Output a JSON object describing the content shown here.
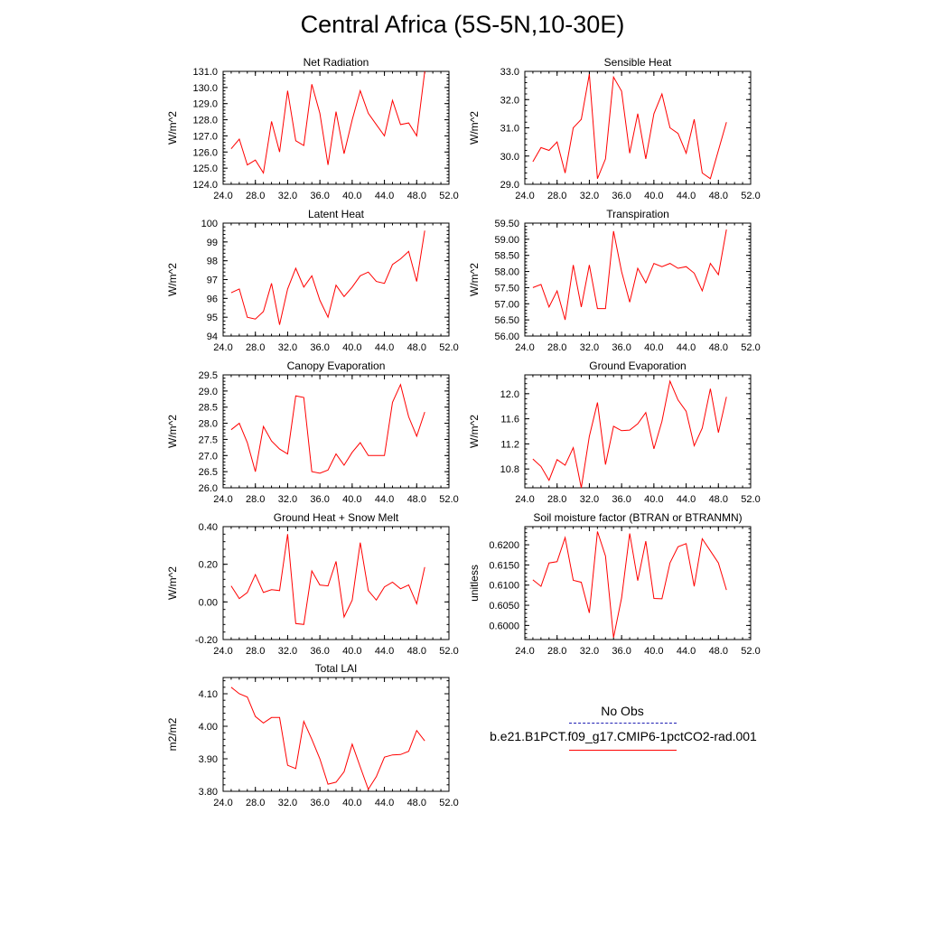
{
  "title": "Central Africa (5S-5N,10-30E)",
  "legend": {
    "obs_label": "No Obs",
    "obs_color": "#1f1fb4",
    "model_label": "b.e21.B1PCT.f09_g17.CMIP6-1pctCO2-rad.001",
    "model_color": "#ff0000"
  },
  "chart_data": [
    {
      "type": "line",
      "title": "Net Radiation",
      "xlabel": "",
      "ylabel": "W/m^2",
      "xlim": [
        24,
        52
      ],
      "ylim": [
        124,
        131
      ],
      "grid": false,
      "xticks": [
        "24.0",
        "28.0",
        "32.0",
        "36.0",
        "40.0",
        "44.0",
        "48.0",
        "52.0"
      ],
      "yticks": [
        "124.0",
        "125.0",
        "126.0",
        "127.0",
        "128.0",
        "129.0",
        "130.0",
        "131.0"
      ],
      "x": [
        25,
        26,
        27,
        28,
        29,
        30,
        31,
        32,
        33,
        34,
        35,
        36,
        37,
        38,
        39,
        40,
        41,
        42,
        43,
        44,
        45,
        46,
        47,
        48,
        49
      ],
      "series": [
        {
          "values": [
            126.2,
            126.8,
            125.2,
            125.5,
            124.7,
            127.9,
            126.0,
            129.8,
            126.7,
            126.4,
            130.2,
            128.4,
            125.2,
            128.5,
            125.9,
            128.0,
            129.8,
            128.4,
            127.7,
            127.0,
            129.2,
            127.7,
            127.8,
            127.0,
            131.0
          ]
        }
      ]
    },
    {
      "type": "line",
      "title": "Sensible Heat",
      "xlabel": "",
      "ylabel": "W/m^2",
      "xlim": [
        24,
        52
      ],
      "ylim": [
        29,
        33
      ],
      "grid": false,
      "xticks": [
        "24.0",
        "28.0",
        "32.0",
        "36.0",
        "40.0",
        "44.0",
        "48.0",
        "52.0"
      ],
      "yticks": [
        "29.0",
        "30.0",
        "31.0",
        "32.0",
        "33.0"
      ],
      "x": [
        25,
        26,
        27,
        28,
        29,
        30,
        31,
        32,
        33,
        34,
        35,
        36,
        37,
        38,
        39,
        40,
        41,
        42,
        43,
        44,
        45,
        46,
        47,
        48,
        49
      ],
      "series": [
        {
          "values": [
            29.8,
            30.3,
            30.2,
            30.5,
            29.4,
            31.0,
            31.3,
            32.9,
            29.2,
            29.9,
            32.8,
            32.3,
            30.1,
            31.5,
            29.9,
            31.5,
            32.2,
            31.0,
            30.8,
            30.1,
            31.3,
            29.4,
            29.2,
            30.2,
            31.2
          ]
        }
      ]
    },
    {
      "type": "line",
      "title": "Latent Heat",
      "xlabel": "",
      "ylabel": "W/m^2",
      "xlim": [
        24,
        52
      ],
      "ylim": [
        94,
        100
      ],
      "grid": false,
      "xticks": [
        "24.0",
        "28.0",
        "32.0",
        "36.0",
        "40.0",
        "44.0",
        "48.0",
        "52.0"
      ],
      "yticks": [
        "94",
        "95",
        "96",
        "97",
        "98",
        "99",
        "100"
      ],
      "x": [
        25,
        26,
        27,
        28,
        29,
        30,
        31,
        32,
        33,
        34,
        35,
        36,
        37,
        38,
        39,
        40,
        41,
        42,
        43,
        44,
        45,
        46,
        47,
        48,
        49
      ],
      "series": [
        {
          "values": [
            96.3,
            96.5,
            95.0,
            94.9,
            95.3,
            96.8,
            94.6,
            96.5,
            97.6,
            96.6,
            97.2,
            95.9,
            95.0,
            96.7,
            96.1,
            96.6,
            97.2,
            97.4,
            96.9,
            96.8,
            97.8,
            98.1,
            98.5,
            96.9,
            99.6
          ]
        }
      ]
    },
    {
      "type": "line",
      "title": "Transpiration",
      "xlabel": "",
      "ylabel": "W/m^2",
      "xlim": [
        24,
        52
      ],
      "ylim": [
        56,
        59.5
      ],
      "grid": false,
      "xticks": [
        "24.0",
        "28.0",
        "32.0",
        "36.0",
        "40.0",
        "44.0",
        "48.0",
        "52.0"
      ],
      "yticks": [
        "56.00",
        "56.50",
        "57.00",
        "57.50",
        "58.00",
        "58.50",
        "59.00",
        "59.50"
      ],
      "x": [
        25,
        26,
        27,
        28,
        29,
        30,
        31,
        32,
        33,
        34,
        35,
        36,
        37,
        38,
        39,
        40,
        41,
        42,
        43,
        44,
        45,
        46,
        47,
        48,
        49
      ],
      "series": [
        {
          "values": [
            57.5,
            57.6,
            56.9,
            57.4,
            56.5,
            58.2,
            56.9,
            58.2,
            56.85,
            56.85,
            59.25,
            58.0,
            57.05,
            58.1,
            57.65,
            58.25,
            58.15,
            58.25,
            58.1,
            58.15,
            57.95,
            57.4,
            58.25,
            57.9,
            59.3
          ]
        }
      ]
    },
    {
      "type": "line",
      "title": "Canopy Evaporation",
      "xlabel": "",
      "ylabel": "W/m^2",
      "xlim": [
        24,
        52
      ],
      "ylim": [
        26,
        29.5
      ],
      "grid": false,
      "xticks": [
        "24.0",
        "28.0",
        "32.0",
        "36.0",
        "40.0",
        "44.0",
        "48.0",
        "52.0"
      ],
      "yticks": [
        "26.0",
        "26.5",
        "27.0",
        "27.5",
        "28.0",
        "28.5",
        "29.0",
        "29.5"
      ],
      "x": [
        25,
        26,
        27,
        28,
        29,
        30,
        31,
        32,
        33,
        34,
        35,
        36,
        37,
        38,
        39,
        40,
        41,
        42,
        43,
        44,
        45,
        46,
        47,
        48,
        49
      ],
      "series": [
        {
          "values": [
            27.8,
            28.0,
            27.4,
            26.5,
            27.9,
            27.45,
            27.2,
            27.05,
            28.85,
            28.8,
            26.5,
            26.45,
            26.55,
            27.05,
            26.7,
            27.1,
            27.4,
            27.0,
            27.0,
            27.0,
            28.65,
            29.2,
            28.2,
            27.6,
            28.35
          ]
        }
      ]
    },
    {
      "type": "line",
      "title": "Ground Evaporation",
      "xlabel": "",
      "ylabel": "W/m^2",
      "xlim": [
        24,
        52
      ],
      "ylim": [
        10.5,
        12.3
      ],
      "grid": false,
      "xticks": [
        "24.0",
        "28.0",
        "32.0",
        "36.0",
        "40.0",
        "44.0",
        "48.0",
        "52.0"
      ],
      "yticks": [
        "10.8",
        "11.2",
        "11.6",
        "12.0"
      ],
      "x": [
        25,
        26,
        27,
        28,
        29,
        30,
        31,
        32,
        33,
        34,
        35,
        36,
        37,
        38,
        39,
        40,
        41,
        42,
        43,
        44,
        45,
        46,
        47,
        48,
        49
      ],
      "series": [
        {
          "values": [
            10.96,
            10.84,
            10.62,
            10.95,
            10.86,
            11.14,
            10.5,
            11.32,
            11.86,
            10.87,
            11.48,
            11.41,
            11.42,
            11.52,
            11.7,
            11.12,
            11.56,
            12.2,
            11.9,
            11.72,
            11.17,
            11.45,
            12.08,
            11.38,
            11.95
          ]
        }
      ]
    },
    {
      "type": "line",
      "title": "Ground Heat + Snow Melt",
      "xlabel": "",
      "ylabel": "W/m^2",
      "xlim": [
        24,
        52
      ],
      "ylim": [
        -0.2,
        0.4
      ],
      "grid": false,
      "xticks": [
        "24.0",
        "28.0",
        "32.0",
        "36.0",
        "40.0",
        "44.0",
        "48.0",
        "52.0"
      ],
      "yticks": [
        "-0.20",
        "0.00",
        "0.20",
        "0.40"
      ],
      "x": [
        25,
        26,
        27,
        28,
        29,
        30,
        31,
        32,
        33,
        34,
        35,
        36,
        37,
        38,
        39,
        40,
        41,
        42,
        43,
        44,
        45,
        46,
        47,
        48,
        49
      ],
      "series": [
        {
          "values": [
            0.085,
            0.018,
            0.05,
            0.145,
            0.05,
            0.065,
            0.06,
            0.36,
            -0.115,
            -0.12,
            0.165,
            0.09,
            0.085,
            0.215,
            -0.08,
            0.01,
            0.315,
            0.06,
            0.01,
            0.08,
            0.105,
            0.07,
            0.09,
            -0.01,
            0.185
          ]
        }
      ]
    },
    {
      "type": "line",
      "title": "Soil moisture factor (BTRAN or BTRANMN)",
      "xlabel": "",
      "ylabel": "unitless",
      "xlim": [
        24,
        52
      ],
      "ylim": [
        0.5965,
        0.6245
      ],
      "grid": false,
      "xticks": [
        "24.0",
        "28.0",
        "32.0",
        "36.0",
        "40.0",
        "44.0",
        "48.0",
        "52.0"
      ],
      "yticks": [
        "0.6000",
        "0.6050",
        "0.6100",
        "0.6150",
        "0.6200"
      ],
      "x": [
        25,
        26,
        27,
        28,
        29,
        30,
        31,
        32,
        33,
        34,
        35,
        36,
        37,
        38,
        39,
        40,
        41,
        42,
        43,
        44,
        45,
        46,
        47,
        48,
        49
      ],
      "series": [
        {
          "values": [
            0.6113,
            0.6097,
            0.6155,
            0.6158,
            0.6218,
            0.6112,
            0.6107,
            0.6031,
            0.6233,
            0.6172,
            0.597,
            0.6068,
            0.6228,
            0.6111,
            0.6209,
            0.6067,
            0.6066,
            0.6155,
            0.6195,
            0.6203,
            0.6097,
            0.6215,
            0.6185,
            0.6155,
            0.6088
          ]
        }
      ]
    },
    {
      "type": "line",
      "title": "Total LAI",
      "xlabel": "",
      "ylabel": "m2/m2",
      "xlim": [
        24,
        52
      ],
      "ylim": [
        3.8,
        4.15
      ],
      "grid": false,
      "xticks": [
        "24.0",
        "28.0",
        "32.0",
        "36.0",
        "40.0",
        "44.0",
        "48.0",
        "52.0"
      ],
      "yticks": [
        "3.80",
        "3.90",
        "4.00",
        "4.10"
      ],
      "x": [
        25,
        26,
        27,
        28,
        29,
        30,
        31,
        32,
        33,
        34,
        35,
        36,
        37,
        38,
        39,
        40,
        41,
        42,
        43,
        44,
        45,
        46,
        47,
        48,
        49
      ],
      "series": [
        {
          "values": [
            4.12,
            4.1,
            4.09,
            4.03,
            4.01,
            4.027,
            4.027,
            3.88,
            3.87,
            4.015,
            3.96,
            3.9,
            3.822,
            3.828,
            3.86,
            3.945,
            3.875,
            3.806,
            3.845,
            3.905,
            3.912,
            3.913,
            3.923,
            3.987,
            3.955
          ]
        }
      ]
    }
  ]
}
